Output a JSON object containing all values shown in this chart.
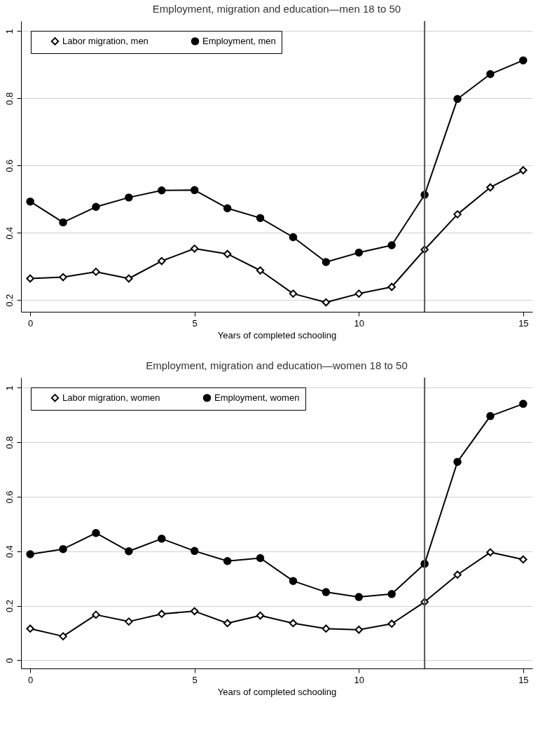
{
  "chart_data": [
    {
      "type": "line",
      "title": "Employment, migration and education—men 18 to 50",
      "xlabel": "Years of completed schooling",
      "x": [
        0,
        1,
        2,
        3,
        4,
        5,
        6,
        7,
        8,
        9,
        10,
        11,
        12,
        13,
        14,
        15
      ],
      "series": [
        {
          "name": "Labor migration, men",
          "color": "#000000",
          "marker": "diamond",
          "values": [
            0.264,
            0.268,
            0.284,
            0.264,
            0.316,
            0.353,
            0.337,
            0.288,
            0.219,
            0.193,
            0.219,
            0.239,
            0.35,
            0.455,
            0.535,
            0.586
          ]
        },
        {
          "name": "Employment, men",
          "color": "#000000",
          "marker": "circle",
          "values": [
            0.493,
            0.431,
            0.477,
            0.505,
            0.526,
            0.527,
            0.473,
            0.444,
            0.387,
            0.313,
            0.341,
            0.363,
            0.513,
            0.798,
            0.872,
            0.913
          ]
        }
      ],
      "xlim": [
        -0.28,
        15.28
      ],
      "xticks": [
        0,
        5,
        10,
        15
      ],
      "ylim": [
        0.165,
        1.03
      ],
      "yticks": [
        0.2,
        0.4,
        0.6,
        0.8,
        1
      ],
      "ref_lines": [
        {
          "axis": "x",
          "value": 12,
          "color": "#555555"
        }
      ],
      "grid": "y",
      "legend": "top left"
    },
    {
      "type": "line",
      "title": "Employment, migration and education—women 18 to 50",
      "xlabel": "Years of completed schooling",
      "x": [
        0,
        1,
        2,
        3,
        4,
        5,
        6,
        7,
        8,
        9,
        10,
        11,
        12,
        13,
        14,
        15
      ],
      "series": [
        {
          "name": "Labor migration, women",
          "color": "#000000",
          "marker": "diamond",
          "values": [
            0.116,
            0.088,
            0.167,
            0.142,
            0.17,
            0.18,
            0.136,
            0.164,
            0.136,
            0.116,
            0.112,
            0.134,
            0.214,
            0.314,
            0.396,
            0.37
          ]
        },
        {
          "name": "Employment, women",
          "color": "#000000",
          "marker": "circle",
          "values": [
            0.389,
            0.408,
            0.467,
            0.4,
            0.446,
            0.401,
            0.364,
            0.375,
            0.291,
            0.25,
            0.232,
            0.243,
            0.354,
            0.728,
            0.896,
            0.941
          ]
        }
      ],
      "xlim": [
        -0.28,
        15.28
      ],
      "xticks": [
        0,
        5,
        10,
        15
      ],
      "ylim": [
        -0.03,
        1.037
      ],
      "yticks": [
        0,
        0.2,
        0.4,
        0.6,
        0.8,
        1
      ],
      "ref_lines": [
        {
          "axis": "x",
          "value": 12,
          "color": "#555555"
        }
      ],
      "grid": "y",
      "legend": "top left"
    }
  ]
}
